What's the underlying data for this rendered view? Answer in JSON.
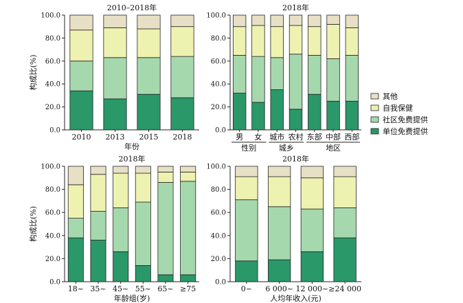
{
  "colors": {
    "other": "#e8e0c6",
    "self": "#eef2b0",
    "community": "#a6d8ad",
    "employer": "#2a9868",
    "stroke": "#222222"
  },
  "legend": {
    "items": [
      {
        "key": "other",
        "label": "其他"
      },
      {
        "key": "self",
        "label": "自我保健"
      },
      {
        "key": "community",
        "label": "社区免费提供"
      },
      {
        "key": "employer",
        "label": "单位免费提供"
      }
    ]
  },
  "chart_data": [
    {
      "type": "bar",
      "stacked": true,
      "title": "2010–2018年",
      "ylabel": "构成比(%)",
      "xlabel": "年份",
      "ylim": [
        0,
        100
      ],
      "yticks": [
        "0.0",
        "20.0",
        "40.0",
        "60.0",
        "80.0",
        "100.0"
      ],
      "categories": [
        "2010",
        "2013",
        "2015",
        "2018"
      ],
      "groups": [],
      "series": [
        {
          "name": "单位免费提供",
          "key": "employer",
          "values": [
            34,
            27,
            31,
            28
          ]
        },
        {
          "name": "社区免费提供",
          "key": "community",
          "values": [
            26,
            36,
            32,
            36
          ]
        },
        {
          "name": "自我保健",
          "key": "self",
          "values": [
            27,
            26,
            25,
            26
          ]
        },
        {
          "name": "其他",
          "key": "other",
          "values": [
            13,
            11,
            12,
            10
          ]
        }
      ]
    },
    {
      "type": "bar",
      "stacked": true,
      "title": "2018年",
      "ylabel": "",
      "xlabel": "",
      "ylim": [
        0,
        100
      ],
      "yticks": [
        "0.0",
        "20.0",
        "40.0",
        "60.0",
        "80.0",
        "100.0"
      ],
      "categories": [
        "男",
        "女",
        "城市",
        "农村",
        "东部",
        "中部",
        "西部"
      ],
      "groups": [
        {
          "label": "性别",
          "from": 0,
          "to": 1
        },
        {
          "label": "城乡",
          "from": 2,
          "to": 3
        },
        {
          "label": "地区",
          "from": 4,
          "to": 6
        }
      ],
      "series": [
        {
          "name": "单位免费提供",
          "key": "employer",
          "values": [
            32,
            24,
            35,
            18,
            31,
            25,
            25
          ]
        },
        {
          "name": "社区免费提供",
          "key": "community",
          "values": [
            33,
            40,
            28,
            48,
            34,
            37,
            40
          ]
        },
        {
          "name": "自我保健",
          "key": "self",
          "values": [
            25,
            27,
            27,
            25,
            25,
            30,
            24
          ]
        },
        {
          "name": "其他",
          "key": "other",
          "values": [
            10,
            9,
            10,
            9,
            10,
            8,
            11
          ]
        }
      ]
    },
    {
      "type": "bar",
      "stacked": true,
      "title": "2018年",
      "ylabel": "构成比(%)",
      "xlabel": "年龄组(岁)",
      "ylim": [
        0,
        100
      ],
      "yticks": [
        "0.0",
        "20.0",
        "40.0",
        "60.0",
        "80.0",
        "100.0"
      ],
      "categories": [
        "18~",
        "35~",
        "45~",
        "55~",
        "65~",
        "≥75"
      ],
      "groups": [],
      "series": [
        {
          "name": "单位免费提供",
          "key": "employer",
          "values": [
            38,
            36,
            26,
            14,
            6,
            6
          ]
        },
        {
          "name": "社区免费提供",
          "key": "community",
          "values": [
            17,
            25,
            38,
            55,
            80,
            81
          ]
        },
        {
          "name": "自我保健",
          "key": "self",
          "values": [
            29,
            32,
            30,
            25,
            9,
            8
          ]
        },
        {
          "name": "其他",
          "key": "other",
          "values": [
            16,
            7,
            6,
            6,
            5,
            5
          ]
        }
      ]
    },
    {
      "type": "bar",
      "stacked": true,
      "title": "2018年",
      "ylabel": "",
      "xlabel": "人均年收入(元)",
      "ylim": [
        0,
        100
      ],
      "yticks": [
        "0.0",
        "20.0",
        "40.0",
        "60.0",
        "80.0",
        "100.0"
      ],
      "categories": [
        "0~",
        "6 000~",
        "12 000~",
        "≥24 000"
      ],
      "groups": [],
      "series": [
        {
          "name": "单位免费提供",
          "key": "employer",
          "values": [
            18,
            19,
            26,
            38
          ]
        },
        {
          "name": "社区免费提供",
          "key": "community",
          "values": [
            53,
            46,
            37,
            26
          ]
        },
        {
          "name": "自我保健",
          "key": "self",
          "values": [
            20,
            26,
            27,
            27
          ]
        },
        {
          "name": "其他",
          "key": "other",
          "values": [
            9,
            9,
            10,
            9
          ]
        }
      ]
    }
  ]
}
